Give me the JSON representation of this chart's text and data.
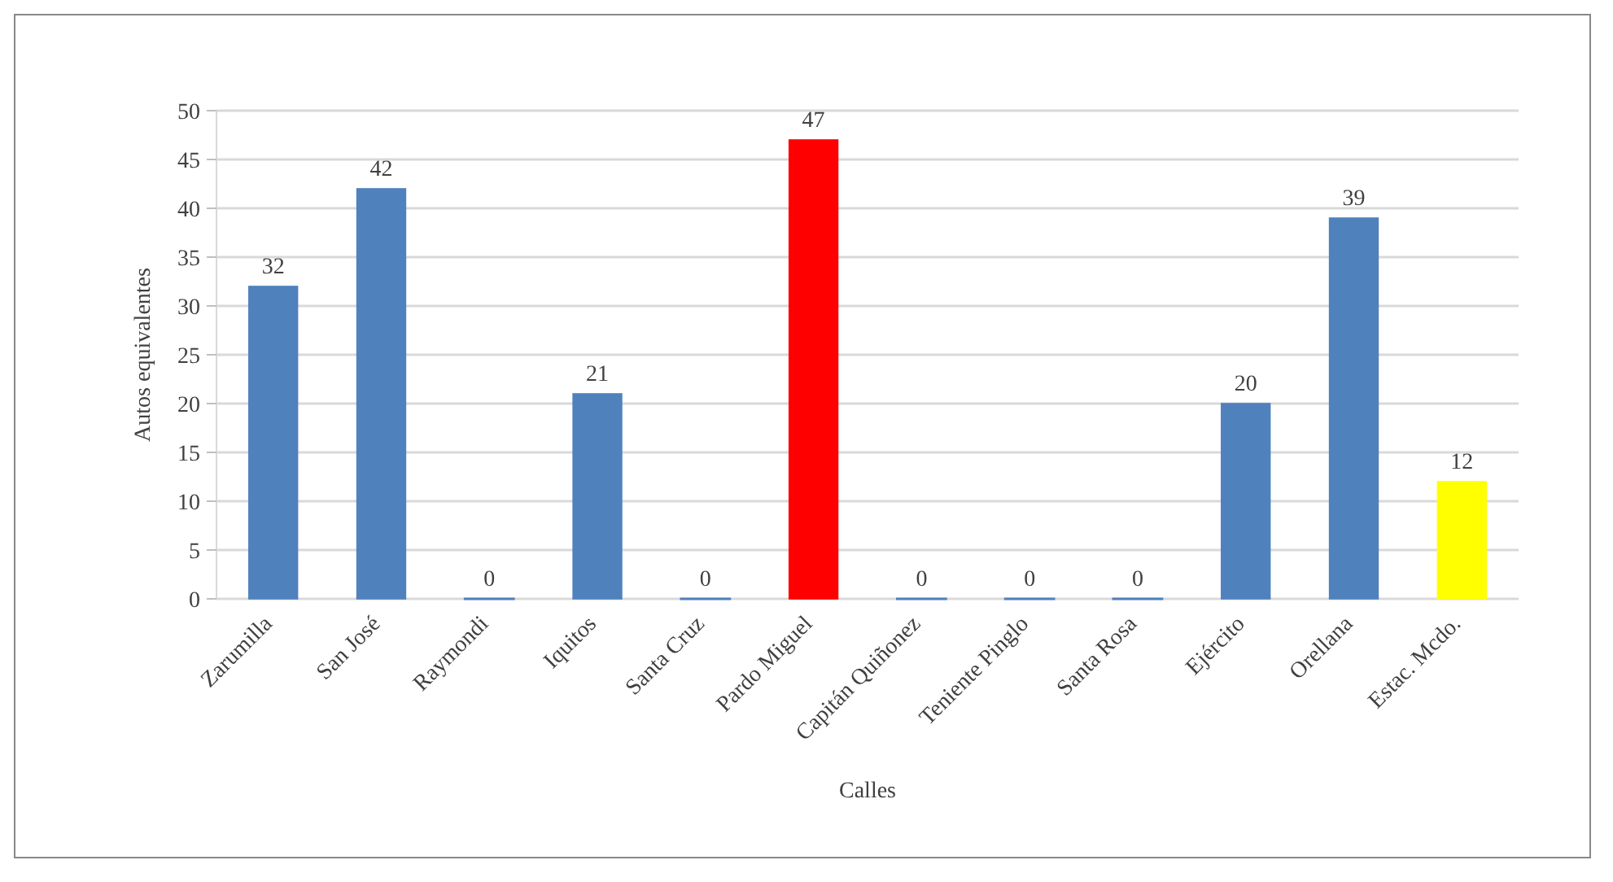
{
  "chart_data": {
    "type": "bar",
    "xlabel": "Calles",
    "ylabel": "Autos equivalentes",
    "categories": [
      "Zarumilla",
      "San José",
      "Raymondi",
      "Iquitos",
      "Santa Cruz",
      "Pardo Miguel",
      "Capitán Quiñonez",
      "Teniente Pinglo",
      "Santa Rosa",
      "Ejército",
      "Orellana",
      "Estac. Mcdo."
    ],
    "values": [
      32,
      42,
      0,
      21,
      0,
      47,
      0,
      0,
      0,
      20,
      39,
      12
    ],
    "colors": [
      "#4f81bd",
      "#4f81bd",
      "#4f81bd",
      "#4f81bd",
      "#4f81bd",
      "#ff0000",
      "#4f81bd",
      "#4f81bd",
      "#4f81bd",
      "#4f81bd",
      "#4f81bd",
      "#ffff00"
    ],
    "ylim": [
      0,
      50
    ],
    "yticks": [
      0,
      5,
      10,
      15,
      20,
      25,
      30,
      35,
      40,
      45,
      50
    ],
    "grid": "y",
    "data_labels": true
  }
}
